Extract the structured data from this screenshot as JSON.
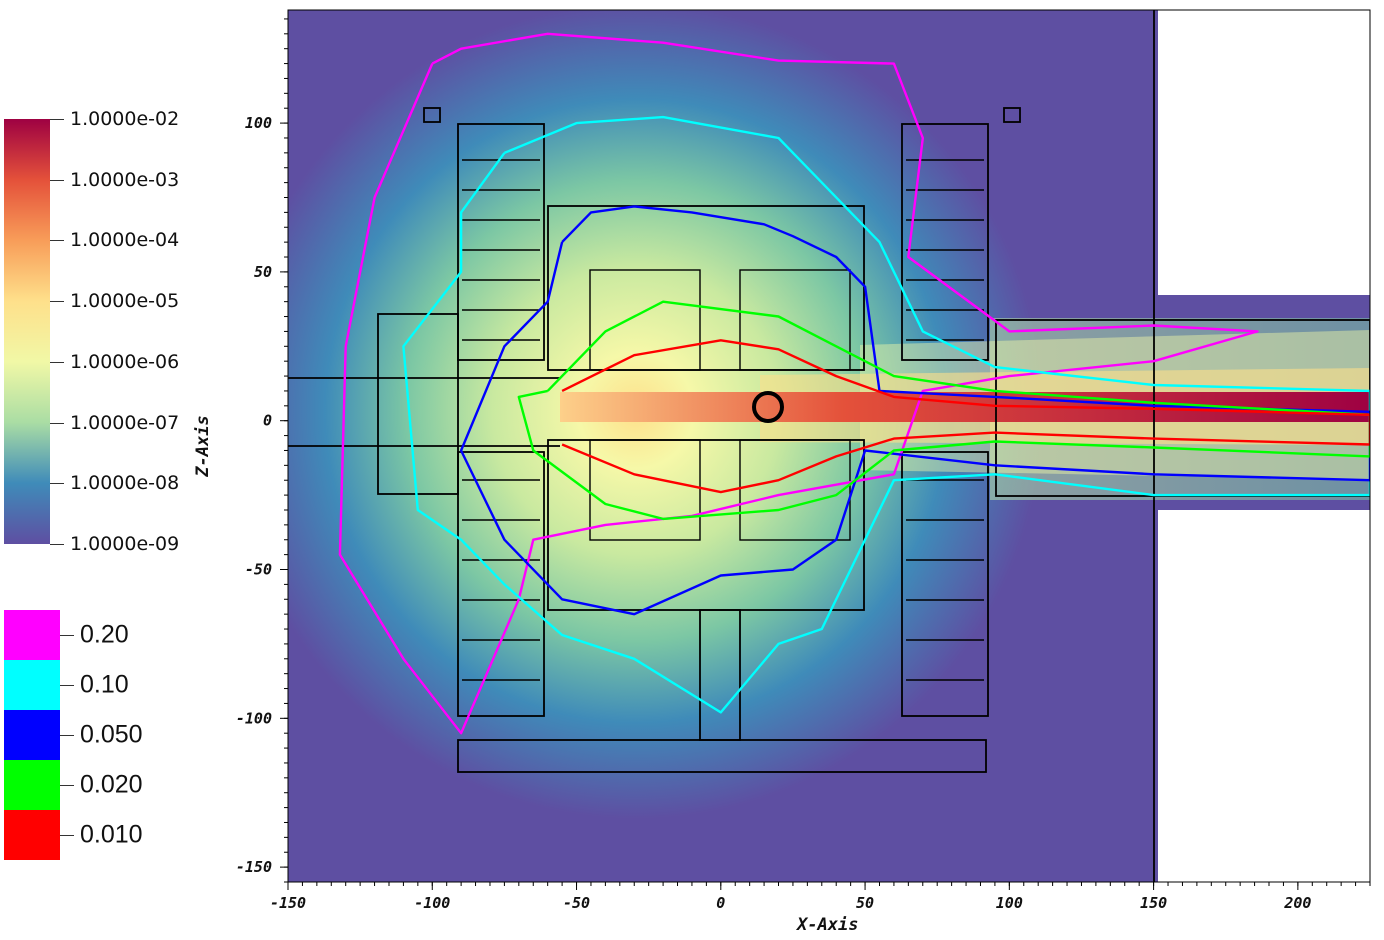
{
  "chart_data": {
    "type": "heatmap",
    "title": "",
    "xlabel": "X-Axis",
    "ylabel": "Z-Axis",
    "xlim": [
      -150,
      225
    ],
    "ylim": [
      -155,
      138
    ],
    "x_ticks": [
      "-150",
      "-100",
      "-50",
      "0",
      "50",
      "100",
      "150",
      "200"
    ],
    "x_tick_values": [
      -150,
      -100,
      -50,
      0,
      50,
      100,
      150,
      200
    ],
    "y_ticks": [
      "100",
      "50",
      "0",
      "-50",
      "-100",
      "-150"
    ],
    "y_tick_values": [
      100,
      50,
      0,
      -50,
      -100,
      -150
    ],
    "colorbar": {
      "scale": "log",
      "colormap": "spectral (purple-blue-green-yellow-orange-red)",
      "labels": [
        "1.0000e-02",
        "1.0000e-03",
        "1.0000e-04",
        "1.0000e-05",
        "1.0000e-06",
        "1.0000e-07",
        "1.0000e-08",
        "1.0000e-09"
      ],
      "colors": [
        "#9e0142",
        "#e4513a",
        "#f89d59",
        "#fee08b",
        "#f1f8a6",
        "#aadda4",
        "#3f8bb9",
        "#5e4fa2"
      ]
    },
    "contour_legend": [
      {
        "value": "0.20",
        "color": "#ff00ff"
      },
      {
        "value": "0.10",
        "color": "#00ffff"
      },
      {
        "value": "0.050",
        "color": "#0000ff"
      },
      {
        "value": "0.020",
        "color": "#00ff00"
      },
      {
        "value": "0.010",
        "color": "#ff0000"
      }
    ],
    "contours": [
      {
        "level": "0.20",
        "color": "#ff00ff",
        "x": [
          -100,
          -90,
          -60,
          -20,
          20,
          60,
          70,
          65,
          100,
          150,
          186,
          150,
          100,
          70,
          60,
          20,
          -10,
          -40,
          -65,
          -70,
          -90,
          -110,
          -132,
          -130,
          -120,
          -100
        ],
        "y": [
          120,
          125,
          130,
          127,
          121,
          120,
          95,
          55,
          30,
          32,
          30,
          20,
          15,
          10,
          -18,
          -25,
          -32,
          -35,
          -40,
          -60,
          -105,
          -80,
          -45,
          25,
          75,
          120
        ]
      },
      {
        "level": "0.10",
        "color": "#00ffff",
        "x": [
          -75,
          -50,
          -20,
          20,
          35,
          55,
          70,
          95,
          150,
          225,
          225,
          150,
          95,
          60,
          35,
          20,
          0,
          -30,
          -55,
          -75,
          -90,
          -105,
          -110,
          -90,
          -90,
          -75
        ],
        "y": [
          90,
          100,
          102,
          95,
          80,
          60,
          30,
          18,
          12,
          10,
          -25,
          -25,
          -18,
          -20,
          -70,
          -75,
          -98,
          -80,
          -72,
          -55,
          -40,
          -30,
          25,
          50,
          70,
          90
        ]
      },
      {
        "level": "0.050",
        "color": "#0000ff",
        "x": [
          -55,
          -45,
          -30,
          -10,
          15,
          25,
          40,
          50,
          55,
          95,
          150,
          225,
          225,
          150,
          95,
          50,
          40,
          25,
          0,
          -30,
          -55,
          -75,
          -90,
          -75,
          -60,
          -55
        ],
        "y": [
          60,
          70,
          72,
          70,
          66,
          62,
          55,
          45,
          10,
          8,
          5,
          3,
          -20,
          -18,
          -15,
          -10,
          -40,
          -50,
          -52,
          -65,
          -60,
          -40,
          -10,
          25,
          40,
          60
        ]
      },
      {
        "level": "0.020",
        "color": "#00ff00",
        "x": [
          -60,
          -40,
          -20,
          20,
          40,
          60,
          95,
          150,
          225,
          225,
          150,
          95,
          60,
          40,
          20,
          -20,
          -40,
          -65,
          -70,
          -60
        ],
        "y": [
          10,
          30,
          40,
          35,
          25,
          15,
          10,
          6,
          2,
          -12,
          -9,
          -7,
          -10,
          -25,
          -30,
          -33,
          -28,
          -10,
          8,
          10
        ]
      },
      {
        "level": "0.010",
        "color": "#ff0000",
        "x": [
          -55,
          -30,
          0,
          20,
          40,
          60,
          95,
          150,
          225,
          225,
          150,
          95,
          60,
          40,
          20,
          0,
          -30,
          -55
        ],
        "y": [
          10,
          22,
          27,
          24,
          15,
          8,
          5,
          4,
          2,
          -8,
          -6,
          -4,
          -6,
          -12,
          -20,
          -24,
          -18,
          -8
        ]
      }
    ]
  }
}
